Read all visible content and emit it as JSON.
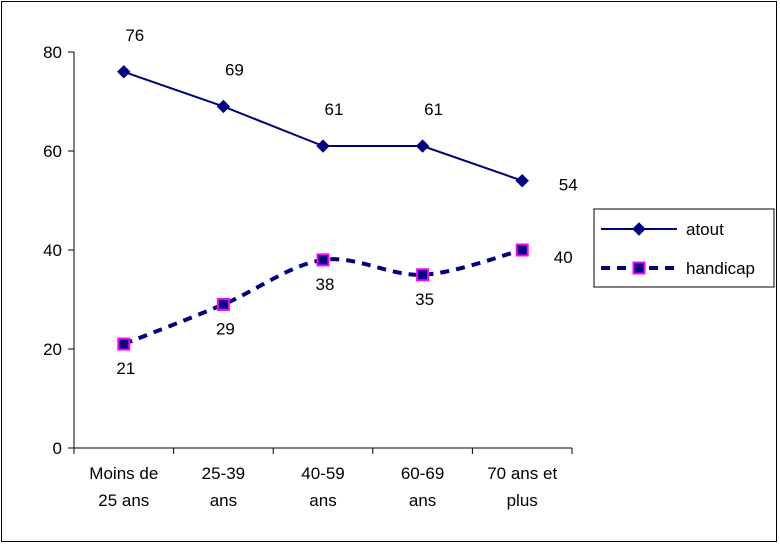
{
  "chart_data": {
    "type": "line",
    "title": "",
    "xlabel": "",
    "ylabel": "",
    "categories": [
      [
        "Moins de",
        "25 ans"
      ],
      [
        "25-39",
        "ans"
      ],
      [
        "40-59",
        "ans"
      ],
      [
        "60-69",
        "ans"
      ],
      [
        "70 ans et",
        "plus"
      ]
    ],
    "ylim": [
      0,
      80
    ],
    "yticks": [
      0,
      20,
      40,
      60,
      80
    ],
    "grid": false,
    "legend_position": "right",
    "series": [
      {
        "name": "atout",
        "values": [
          76,
          69,
          61,
          61,
          54
        ],
        "color": "#000080",
        "line_style": "solid",
        "marker": "diamond",
        "marker_fill": "#000080"
      },
      {
        "name": "handicap",
        "values": [
          21,
          29,
          38,
          35,
          40
        ],
        "color": "#000080",
        "line_style": "dashed",
        "marker": "square",
        "marker_fill": "#000080",
        "marker_edge": "#ff00ff"
      }
    ]
  }
}
